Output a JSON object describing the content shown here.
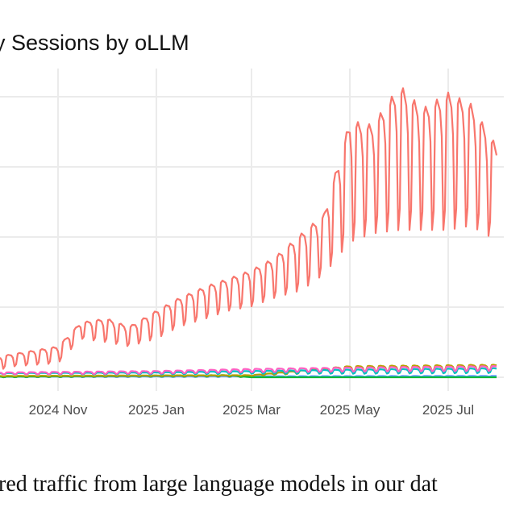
{
  "chart_data": {
    "type": "line",
    "title": "y Sessions by oLLM",
    "xlabel": "",
    "ylabel": "",
    "x_ticks": [
      {
        "date": "2024-11-01",
        "label": "2024 Nov"
      },
      {
        "date": "2025-01-01",
        "label": "2025 Jan"
      },
      {
        "date": "2025-03-01",
        "label": "2025 Mar"
      },
      {
        "date": "2025-05-01",
        "label": "2025 May"
      },
      {
        "date": "2025-07-01",
        "label": "2025 Jul"
      }
    ],
    "xlim": [
      "2024-09-26",
      "2025-08-10"
    ],
    "ylim": [
      0,
      4.3
    ],
    "y_gridlines": [
      0,
      1,
      2,
      3,
      4
    ],
    "grid": true,
    "legend": "none",
    "note_series_format": "weekly anchors: [date, weekday peak, weekend trough]",
    "series": [
      {
        "color": "#F8766D",
        "anchors": [
          [
            "2024-09-26",
            0.3,
            0.1
          ],
          [
            "2024-10-01",
            0.32,
            0.15
          ],
          [
            "2024-11-01",
            0.44,
            0.2
          ],
          [
            "2024-11-15",
            0.78,
            0.55
          ],
          [
            "2024-12-01",
            0.84,
            0.5
          ],
          [
            "2024-12-15",
            0.72,
            0.44
          ],
          [
            "2025-01-01",
            0.95,
            0.55
          ],
          [
            "2025-01-15",
            1.13,
            0.72
          ],
          [
            "2025-02-01",
            1.3,
            0.84
          ],
          [
            "2025-02-15",
            1.41,
            0.95
          ],
          [
            "2025-03-01",
            1.53,
            1.01
          ],
          [
            "2025-03-15",
            1.7,
            1.13
          ],
          [
            "2025-04-01",
            2.05,
            1.24
          ],
          [
            "2025-04-15",
            2.33,
            1.47
          ],
          [
            "2025-05-01",
            3.66,
            1.93
          ],
          [
            "2025-05-15",
            3.6,
            2.05
          ],
          [
            "2025-06-01",
            4.17,
            2.1
          ],
          [
            "2025-06-15",
            3.83,
            2.1
          ],
          [
            "2025-07-01",
            4.06,
            2.1
          ],
          [
            "2025-07-15",
            3.9,
            2.16
          ],
          [
            "2025-07-31",
            3.3,
            1.95
          ]
        ]
      },
      {
        "color": "#FF61C3",
        "anchors": [
          [
            "2024-09-26",
            0.07,
            0.04
          ],
          [
            "2025-01-01",
            0.09,
            0.05
          ],
          [
            "2025-03-01",
            0.12,
            0.07
          ],
          [
            "2025-05-01",
            0.14,
            0.08
          ],
          [
            "2025-07-31",
            0.16,
            0.09
          ]
        ]
      },
      {
        "color": "#00BFC4",
        "anchors": [
          [
            "2024-09-26",
            0.06,
            0.04
          ],
          [
            "2025-01-01",
            0.07,
            0.04
          ],
          [
            "2025-03-01",
            0.09,
            0.05
          ],
          [
            "2025-05-01",
            0.11,
            0.05
          ],
          [
            "2025-07-31",
            0.13,
            0.06
          ]
        ]
      },
      {
        "color": "#B79F00",
        "anchors": [
          [
            "2024-09-26",
            0.02,
            0.01
          ],
          [
            "2025-03-01",
            0.03,
            0.02
          ],
          [
            "2025-05-01",
            0.16,
            0.08
          ],
          [
            "2025-07-31",
            0.18,
            0.09
          ]
        ]
      },
      {
        "color": "#00BA38",
        "anchors": [
          [
            "2024-09-26",
            0.01,
            0.0
          ],
          [
            "2024-12-15",
            0.02,
            0.01
          ],
          [
            "2025-02-15",
            0.03,
            0.01
          ],
          [
            "2025-03-01",
            0.0,
            0.0
          ],
          [
            "2025-07-31",
            0.0,
            0.0
          ]
        ]
      },
      {
        "color": "#619CFF",
        "anchors": [
          [
            "2024-09-26",
            0.01,
            0.0
          ],
          [
            "2025-07-31",
            0.02,
            0.01
          ]
        ]
      }
    ]
  },
  "caption": "red traffic from large language models in our dat"
}
